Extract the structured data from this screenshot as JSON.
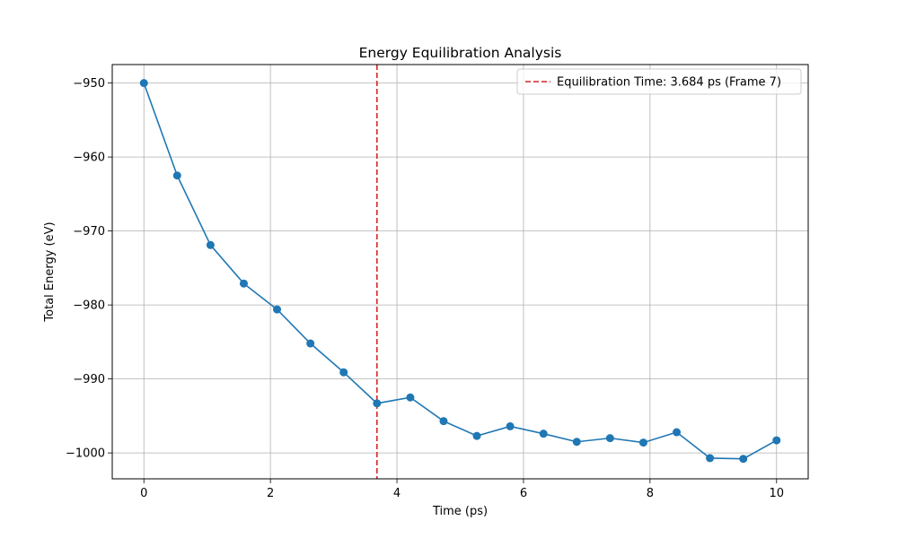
{
  "chart_data": {
    "type": "line",
    "title": "Energy Equilibration Analysis",
    "xlabel": "Time (ps)",
    "ylabel": "Total Energy (eV)",
    "xlim": [
      -0.5,
      10.5
    ],
    "ylim": [
      -1003.5,
      -947.5
    ],
    "x_ticks": [
      0,
      2,
      4,
      6,
      8,
      10
    ],
    "y_ticks": [
      -1000,
      -990,
      -980,
      -970,
      -960,
      -950
    ],
    "x_tick_labels": [
      "0",
      "2",
      "4",
      "6",
      "8",
      "10"
    ],
    "y_tick_labels": [
      "−1000",
      "−990",
      "−980",
      "−970",
      "−960",
      "−950"
    ],
    "grid": true,
    "legend_position": "top-right",
    "series": [
      {
        "color": "#1f77b4",
        "marker": "circle",
        "x": [
          0,
          0.526,
          1.053,
          1.579,
          2.105,
          2.632,
          3.158,
          3.684,
          4.211,
          4.737,
          5.263,
          5.789,
          6.316,
          6.842,
          7.368,
          7.895,
          8.421,
          8.947,
          9.474,
          10
        ],
        "y": [
          -950.0,
          -962.5,
          -971.9,
          -977.1,
          -980.6,
          -985.2,
          -989.1,
          -993.3,
          -992.5,
          -995.7,
          -997.7,
          -996.4,
          -997.4,
          -998.5,
          -998.0,
          -998.6,
          -997.2,
          -1000.7,
          -1000.8,
          -998.3
        ]
      }
    ],
    "annotations": [
      {
        "type": "vline",
        "x": 3.684,
        "color": "#d62728",
        "style": "dashed",
        "label": "Equilibration Time: 3.684 ps (Frame 7)"
      }
    ]
  }
}
